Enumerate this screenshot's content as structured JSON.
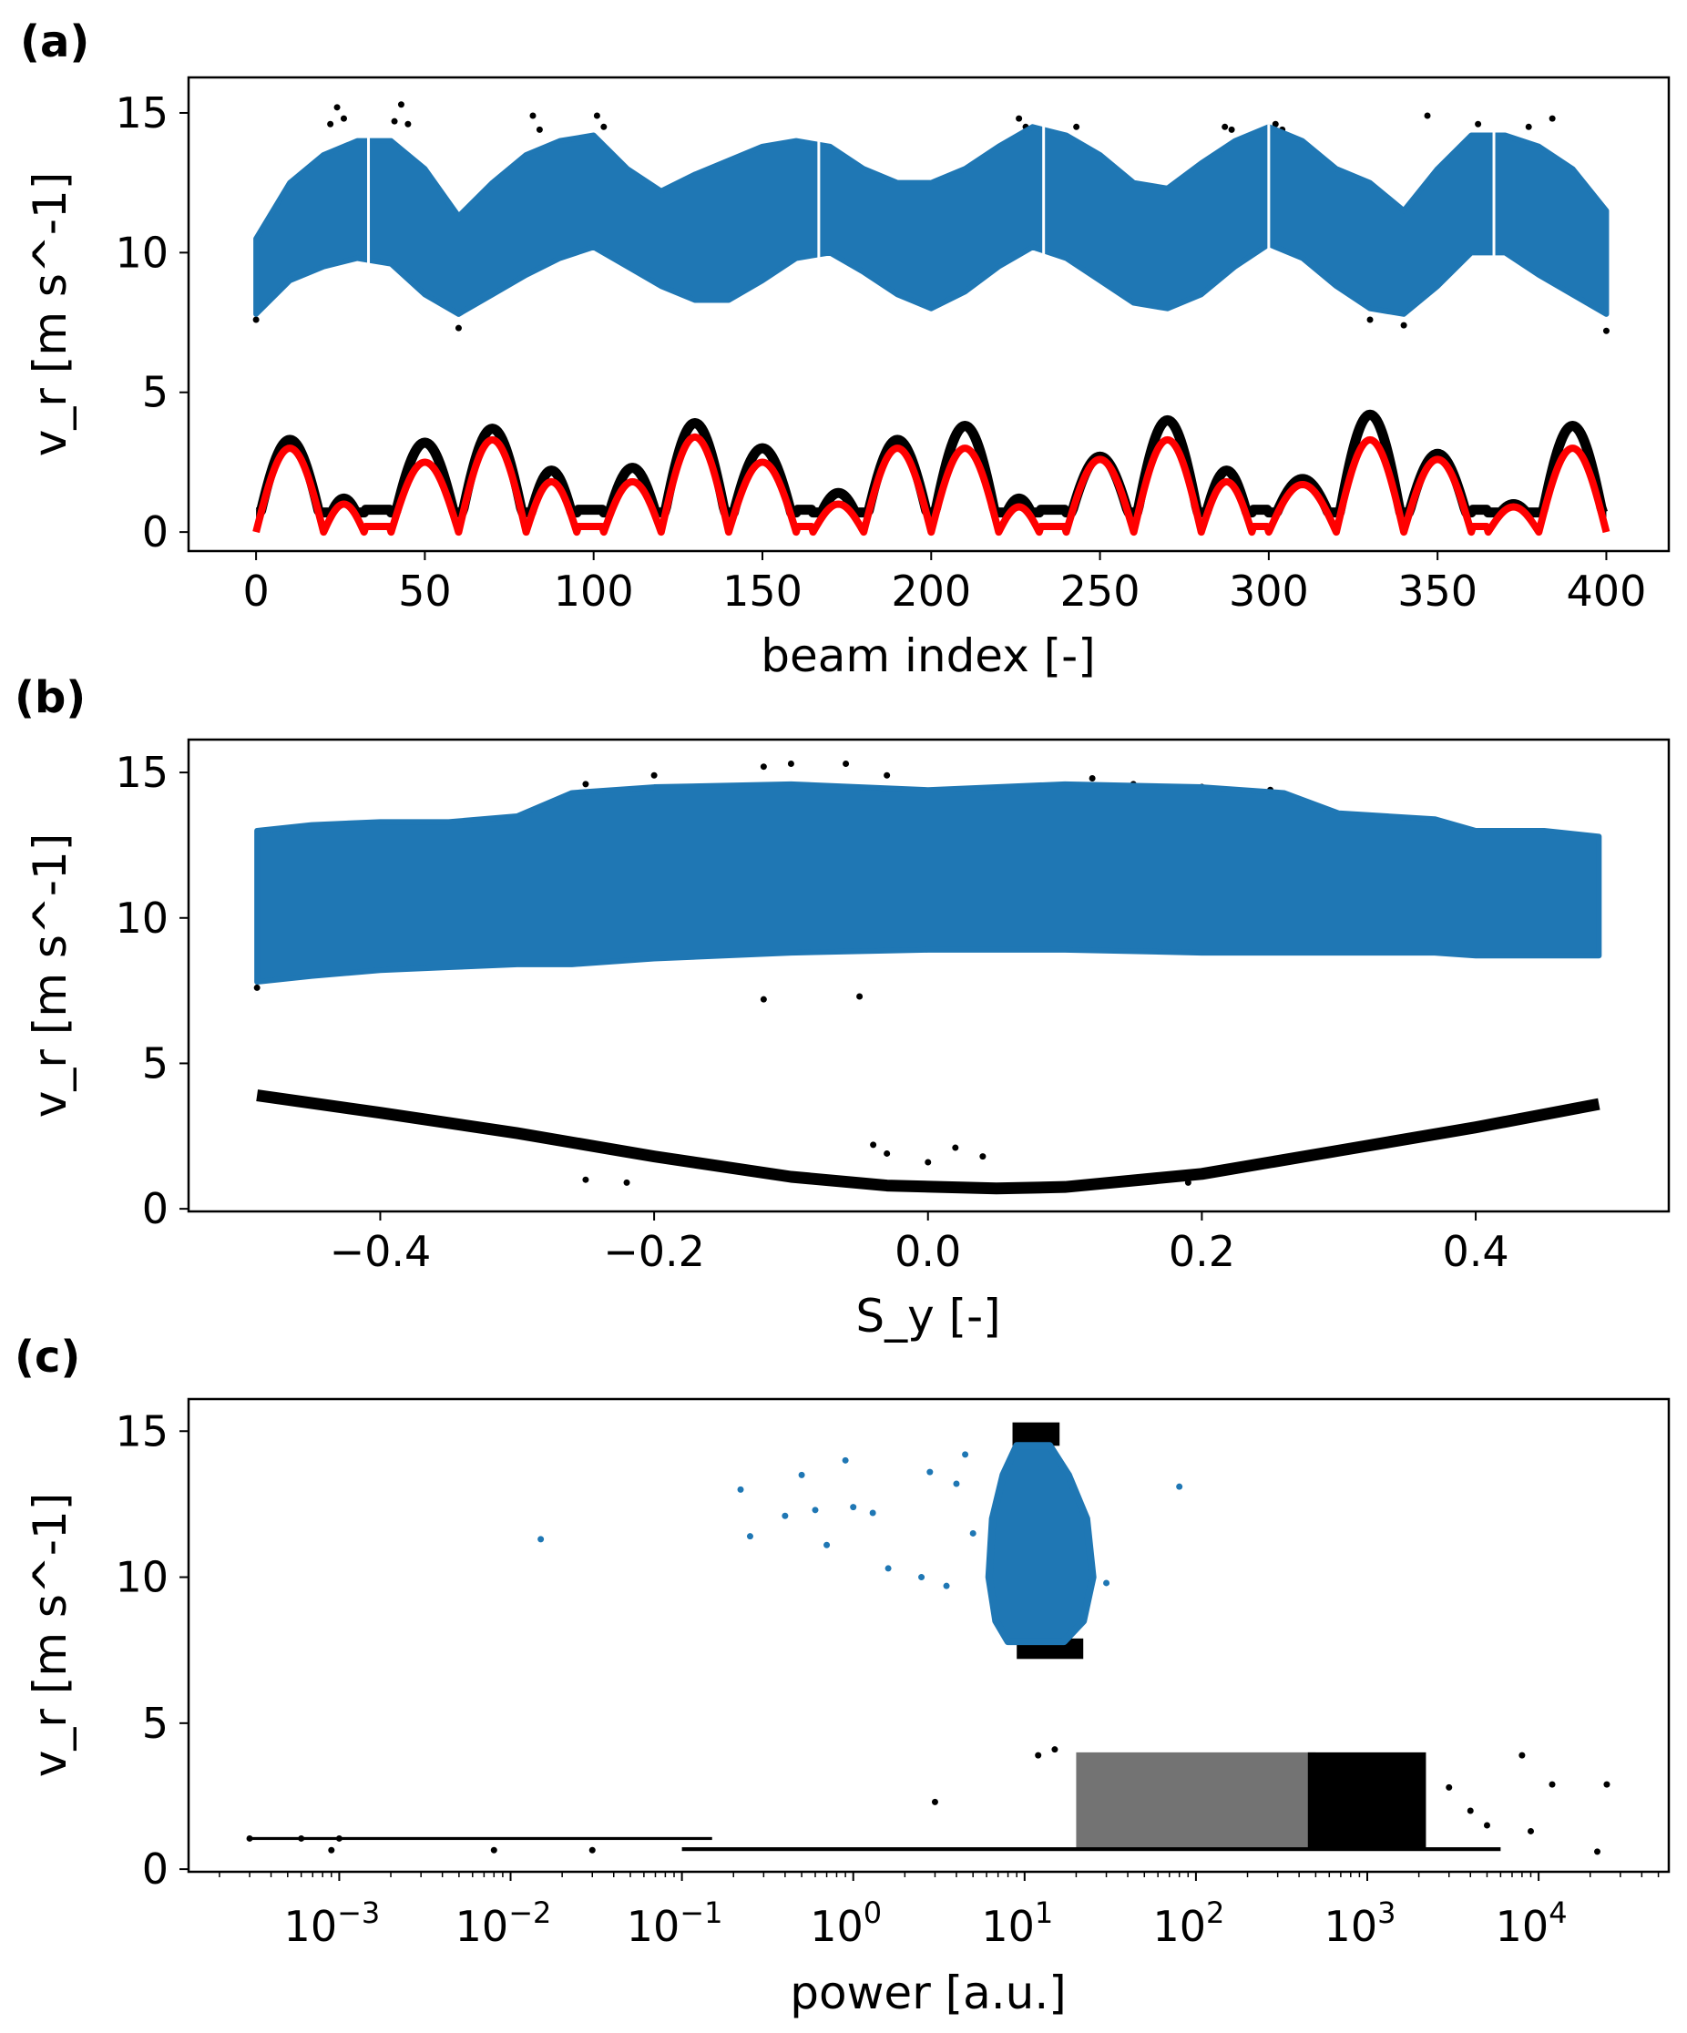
{
  "colors": {
    "blue": "#1f77b4",
    "black": "#000000",
    "red": "#ff0000"
  },
  "chart_data": [
    {
      "panel_label": "(a)",
      "type": "scatter",
      "xlabel": "beam index [-]",
      "ylabel": "v_r [m s^-1]",
      "xlim": [
        -20,
        418.5
      ],
      "ylim": [
        -0.68,
        16.27
      ],
      "xscale": "linear",
      "grid": false,
      "xticks": [
        0,
        50,
        100,
        150,
        200,
        250,
        300,
        350,
        400
      ],
      "xtick_labels": [
        "0",
        "50",
        "100",
        "150",
        "200",
        "250",
        "300",
        "350",
        "400"
      ],
      "yticks": [
        0,
        5,
        10,
        15
      ],
      "ytick_labels": [
        "0",
        "5",
        "10",
        "15"
      ],
      "blue_band": {
        "x": [
          0,
          10,
          20,
          30,
          40,
          50,
          60,
          70,
          80,
          90,
          100,
          110,
          120,
          130,
          140,
          150,
          160,
          170,
          180,
          190,
          200,
          210,
          220,
          230,
          240,
          250,
          260,
          270,
          280,
          290,
          300,
          310,
          320,
          330,
          340,
          350,
          360,
          370,
          380,
          390,
          400
        ],
        "y_min": [
          7.8,
          9,
          9.5,
          9.8,
          9.6,
          8.5,
          7.8,
          8.5,
          9.2,
          9.8,
          10.2,
          9.5,
          8.8,
          8.3,
          8.3,
          9,
          9.8,
          10,
          9.3,
          8.5,
          8,
          8.6,
          9.5,
          10.2,
          9.8,
          9,
          8.2,
          8,
          8.5,
          9.5,
          10.3,
          9.8,
          8.8,
          8,
          7.8,
          8.8,
          10,
          10,
          9.2,
          8.5,
          7.8
        ],
        "y_max": [
          10.5,
          12.5,
          13.5,
          14,
          14,
          13,
          11.3,
          12.5,
          13.5,
          14,
          14.2,
          13,
          12.2,
          12.8,
          13.3,
          13.8,
          14,
          13.8,
          13,
          12.5,
          12.5,
          13,
          13.8,
          14.5,
          14.2,
          13.5,
          12.5,
          12.3,
          13.2,
          14,
          14.5,
          14,
          13,
          12.5,
          11.5,
          13,
          14.2,
          14.2,
          13.8,
          13,
          11.5
        ]
      },
      "gaps_at": [
        33.3,
        166.7,
        233.3,
        300,
        366.7
      ],
      "black_outliers": [
        [
          22,
          14.6
        ],
        [
          24,
          15.2
        ],
        [
          26,
          14.8
        ],
        [
          41,
          14.7
        ],
        [
          43,
          15.3
        ],
        [
          45,
          14.6
        ],
        [
          82,
          14.9
        ],
        [
          84,
          14.4
        ],
        [
          101,
          14.9
        ],
        [
          103,
          14.5
        ],
        [
          226,
          14.8
        ],
        [
          228,
          14.5
        ],
        [
          243,
          14.5
        ],
        [
          287,
          14.5
        ],
        [
          289,
          14.4
        ],
        [
          302,
          14.6
        ],
        [
          304,
          14.4
        ],
        [
          347,
          14.9
        ],
        [
          362,
          14.6
        ],
        [
          377,
          14.5
        ],
        [
          384,
          14.8
        ],
        [
          0,
          7.6
        ],
        [
          60,
          7.3
        ],
        [
          330,
          7.6
        ],
        [
          340,
          7.4
        ],
        [
          400,
          7.2
        ]
      ],
      "arches": [
        {
          "start": 0,
          "end": 20,
          "red_peak": 3.0,
          "black_peak": 3.3
        },
        {
          "start": 20,
          "end": 32,
          "red_peak": 1.0,
          "black_peak": 1.2
        },
        {
          "start": 40,
          "end": 60,
          "red_peak": 2.5,
          "black_peak": 3.2
        },
        {
          "start": 60,
          "end": 80,
          "red_peak": 3.3,
          "black_peak": 3.7
        },
        {
          "start": 80,
          "end": 95,
          "red_peak": 1.8,
          "black_peak": 2.2
        },
        {
          "start": 103,
          "end": 120,
          "red_peak": 1.8,
          "black_peak": 2.3
        },
        {
          "start": 120,
          "end": 140,
          "red_peak": 3.4,
          "black_peak": 3.9
        },
        {
          "start": 140,
          "end": 160,
          "red_peak": 2.5,
          "black_peak": 3.0
        },
        {
          "start": 165,
          "end": 180,
          "red_peak": 1.0,
          "black_peak": 1.4
        },
        {
          "start": 180,
          "end": 200,
          "red_peak": 3.0,
          "black_peak": 3.3
        },
        {
          "start": 200,
          "end": 220,
          "red_peak": 3.0,
          "black_peak": 3.8
        },
        {
          "start": 220,
          "end": 232,
          "red_peak": 0.9,
          "black_peak": 1.2
        },
        {
          "start": 240,
          "end": 260,
          "red_peak": 2.6,
          "black_peak": 2.7
        },
        {
          "start": 260,
          "end": 280,
          "red_peak": 3.3,
          "black_peak": 4.0
        },
        {
          "start": 280,
          "end": 295,
          "red_peak": 1.8,
          "black_peak": 2.2
        },
        {
          "start": 300,
          "end": 320,
          "red_peak": 1.7,
          "black_peak": 1.9
        },
        {
          "start": 320,
          "end": 340,
          "red_peak": 3.3,
          "black_peak": 4.2
        },
        {
          "start": 340,
          "end": 360,
          "red_peak": 2.6,
          "black_peak": 2.8
        },
        {
          "start": 365,
          "end": 380,
          "red_peak": 0.9,
          "black_peak": 1.0
        },
        {
          "start": 380,
          "end": 400,
          "red_peak": 3.0,
          "black_peak": 3.8
        }
      ]
    },
    {
      "panel_label": "(b)",
      "type": "scatter",
      "xlabel": "S_y [-]",
      "ylabel": "v_r [m s^-1]",
      "xlim": [
        -0.54,
        0.541
      ],
      "ylim": [
        -0.09,
        16.13
      ],
      "xscale": "linear",
      "grid": false,
      "xticks": [
        -0.4,
        -0.2,
        0.0,
        0.2,
        0.4
      ],
      "xtick_labels": [
        "−0.4",
        "−0.2",
        "0.0",
        "0.2",
        "0.4"
      ],
      "yticks": [
        0,
        5,
        10,
        15
      ],
      "ytick_labels": [
        "0",
        "5",
        "10",
        "15"
      ],
      "blue_band": {
        "x": [
          -0.49,
          -0.45,
          -0.4,
          -0.35,
          -0.3,
          -0.26,
          -0.2,
          -0.1,
          0.0,
          0.1,
          0.2,
          0.26,
          0.3,
          0.37,
          0.4,
          0.45,
          0.49
        ],
        "y_min": [
          7.8,
          8.0,
          8.2,
          8.3,
          8.4,
          8.4,
          8.6,
          8.8,
          8.9,
          8.9,
          8.8,
          8.8,
          8.8,
          8.8,
          8.7,
          8.7,
          8.7
        ],
        "y_max": [
          13.0,
          13.2,
          13.3,
          13.3,
          13.5,
          14.3,
          14.5,
          14.6,
          14.4,
          14.6,
          14.5,
          14.3,
          13.6,
          13.4,
          13.0,
          13.0,
          12.8
        ]
      },
      "black_curve": [
        [
          -0.49,
          3.9
        ],
        [
          -0.4,
          3.3
        ],
        [
          -0.3,
          2.6
        ],
        [
          -0.2,
          1.8
        ],
        [
          -0.1,
          1.1
        ],
        [
          -0.03,
          0.8
        ],
        [
          0.05,
          0.7
        ],
        [
          0.1,
          0.75
        ],
        [
          0.2,
          1.2
        ],
        [
          0.3,
          2.0
        ],
        [
          0.4,
          2.8
        ],
        [
          0.49,
          3.6
        ]
      ],
      "black_outliers": [
        [
          -0.25,
          14.6
        ],
        [
          -0.2,
          14.9
        ],
        [
          -0.12,
          15.2
        ],
        [
          -0.1,
          15.3
        ],
        [
          -0.06,
          15.3
        ],
        [
          -0.03,
          14.9
        ],
        [
          0.12,
          14.8
        ],
        [
          0.15,
          14.6
        ],
        [
          0.2,
          14.5
        ],
        [
          0.25,
          14.4
        ],
        [
          -0.49,
          7.6
        ],
        [
          -0.12,
          7.2
        ],
        [
          -0.05,
          7.3
        ],
        [
          -0.04,
          2.2
        ],
        [
          -0.03,
          1.9
        ],
        [
          0.02,
          2.1
        ],
        [
          0.04,
          1.8
        ],
        [
          0.0,
          1.6
        ],
        [
          -0.22,
          0.9
        ],
        [
          -0.25,
          1.0
        ],
        [
          0.19,
          0.9
        ]
      ]
    },
    {
      "panel_label": "(c)",
      "type": "scatter",
      "xlabel": "power [a.u.]",
      "ylabel": "v_r [m s^-1]",
      "xlim": [
        0.000132,
        57500
      ],
      "ylim": [
        -0.09,
        16.1
      ],
      "xscale": "log",
      "grid": false,
      "xticks": [
        0.001,
        0.01,
        0.1,
        1,
        10,
        100,
        1000,
        10000
      ],
      "xtick_labels": [
        {
          "base": "10",
          "exp": "−3"
        },
        {
          "base": "10",
          "exp": "−2"
        },
        {
          "base": "10",
          "exp": "−1"
        },
        {
          "base": "10",
          "exp": "0"
        },
        {
          "base": "10",
          "exp": "1"
        },
        {
          "base": "10",
          "exp": "2"
        },
        {
          "base": "10",
          "exp": "3"
        },
        {
          "base": "10",
          "exp": "4"
        }
      ],
      "yticks": [
        0,
        5,
        10,
        15
      ],
      "ytick_labels": [
        "0",
        "5",
        "10",
        "15"
      ],
      "blue_cloud": {
        "y": [
          7.8,
          8.5,
          10,
          12,
          13.5,
          14.5
        ],
        "power_min": [
          8,
          6.8,
          6.2,
          6.5,
          7.5,
          9
        ],
        "power_max": [
          17,
          22,
          25,
          23,
          18,
          14
        ]
      },
      "blue_outliers": [
        [
          0.015,
          11.3
        ],
        [
          0.22,
          13
        ],
        [
          0.25,
          11.4
        ],
        [
          0.5,
          13.5
        ],
        [
          0.9,
          14
        ],
        [
          0.4,
          12.1
        ],
        [
          0.6,
          12.3
        ],
        [
          1.0,
          12.4
        ],
        [
          1.3,
          12.2
        ],
        [
          0.7,
          11.1
        ],
        [
          1.6,
          10.3
        ],
        [
          2.5,
          10
        ],
        [
          2.8,
          13.6
        ],
        [
          4,
          13.2
        ],
        [
          4.5,
          14.2
        ],
        [
          80,
          13.1
        ],
        [
          30,
          9.8
        ],
        [
          3.5,
          9.7
        ],
        [
          5,
          11.5
        ]
      ],
      "black_regions": [
        {
          "power_min": 8.5,
          "power_max": 16,
          "y_min": 14.5,
          "y_max": 15.3
        },
        {
          "power_min": 9,
          "power_max": 22,
          "y_min": 7.2,
          "y_max": 7.9
        },
        {
          "power_min": 0.0003,
          "power_max": 0.15,
          "y_min": 1.0,
          "y_max": 1.1
        },
        {
          "power_min": 0.1,
          "power_max": 6000,
          "y_min": 0.62,
          "y_max": 0.75
        },
        {
          "power_min": 20,
          "power_max": 500,
          "y_min": 0.7,
          "y_max": 4.0
        },
        {
          "power_min": 450,
          "power_max": 2200,
          "y_min": 0.7,
          "y_max": 4.0
        }
      ],
      "black_outliers": [
        [
          0.0003,
          1.05
        ],
        [
          0.0006,
          1.05
        ],
        [
          0.001,
          1.05
        ],
        [
          0.0009,
          0.65
        ],
        [
          0.008,
          0.65
        ],
        [
          0.03,
          0.65
        ],
        [
          3,
          2.3
        ],
        [
          12,
          3.9
        ],
        [
          15,
          4.1
        ],
        [
          8000,
          3.9
        ],
        [
          12000,
          2.9
        ],
        [
          25000,
          2.9
        ],
        [
          22000,
          0.6
        ],
        [
          4000,
          2.0
        ],
        [
          5000,
          1.5
        ],
        [
          9000,
          1.3
        ],
        [
          3000,
          2.8
        ]
      ]
    }
  ]
}
